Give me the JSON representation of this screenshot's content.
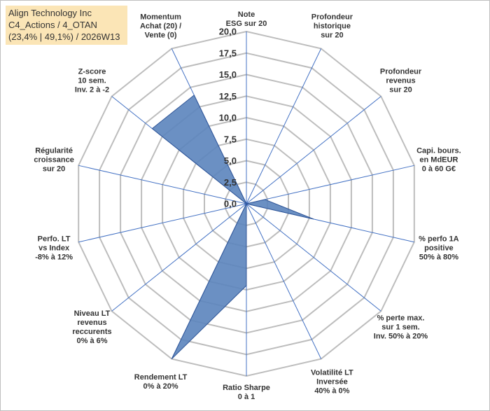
{
  "header": {
    "company": "Align Technology Inc",
    "portfolio": "C4_Actions / 4_OTAN",
    "stats": "(23,4% | 49,1%) / 2026W13"
  },
  "chart_data": {
    "type": "radar",
    "title": "Align Technology Inc",
    "rmin": 0,
    "rmax": 20,
    "ticks": [
      "0,0",
      "2,5",
      "5,0",
      "7,5",
      "10,0",
      "12,5",
      "15,0",
      "17,5",
      "20,0"
    ],
    "tick_values": [
      0,
      2.5,
      5,
      7.5,
      10,
      12.5,
      15,
      17.5,
      20
    ],
    "categories": [
      [
        "Note",
        "ESG sur 20"
      ],
      [
        "Profondeur",
        "historique",
        "sur 20"
      ],
      [
        "Profondeur",
        "revenus",
        "sur 20"
      ],
      [
        "Capi. bours.",
        "en MdEUR",
        "0 à 60 G€"
      ],
      [
        "% perfo 1A",
        "positive",
        "50% à 80%"
      ],
      [
        "% perte max.",
        "sur 1 sem.",
        "Inv. 50% à 20%"
      ],
      [
        "Volatilité LT",
        "Inversée",
        "40% à 0%"
      ],
      [
        "Ratio Sharpe",
        "0 à 1"
      ],
      [
        "Rendement LT",
        "0% à 20%"
      ],
      [
        "Niveau LT",
        "revenus",
        "reccurents",
        "0% à 6%"
      ],
      [
        "Perfo. LT",
        "vs Index",
        "-8% à 12%"
      ],
      [
        "Régularité",
        "croissance",
        "sur 20"
      ],
      [
        "Z-score",
        "10 sem.",
        "Inv. 2 à -2"
      ],
      [
        "Momentum",
        "Achat (20) /",
        "Vente (0)"
      ]
    ],
    "series": [
      {
        "name": "Align Technology Inc",
        "values": [
          0,
          0,
          0,
          2.2,
          8.0,
          0,
          0,
          9.5,
          20.0,
          0,
          0,
          0,
          14.0,
          14.0
        ],
        "fill": "#5b84bd",
        "stroke": "#2f5597"
      }
    ],
    "colors": {
      "grid": "#bdbdbd",
      "axis": "#4472c4"
    }
  }
}
